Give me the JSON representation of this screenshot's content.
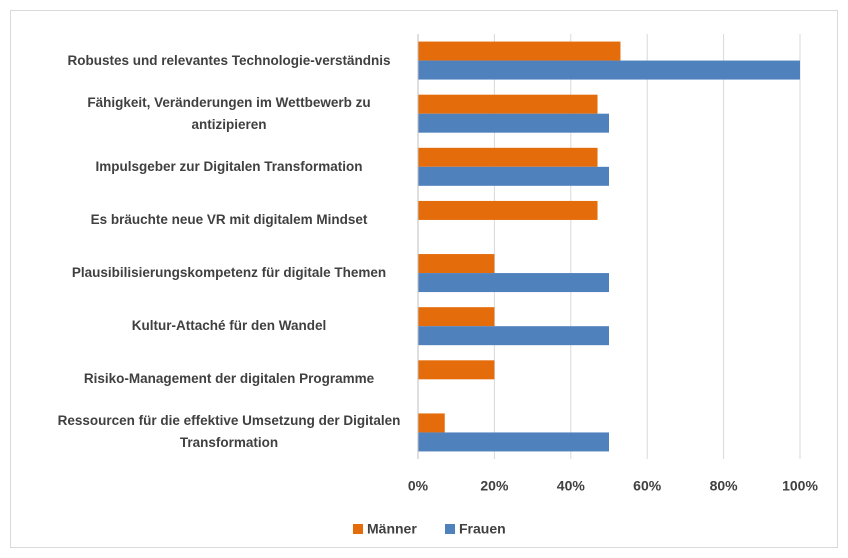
{
  "chart_data": {
    "type": "barh",
    "categories": [
      "Robustes und relevantes Technologie-verständnis",
      "Fähigkeit, Veränderungen im Wettbewerb zu antizipieren",
      "Impulsgeber zur Digitalen Transformation",
      "Es bräuchte neue VR mit digitalem Mindset",
      "Plausibilisierungskompetenz für digitale Themen",
      "Kultur-Attaché für den Wandel",
      "Risiko-Management der digitalen Programme",
      "Ressourcen für die effektive Umsetzung der Digitalen Transformation"
    ],
    "series": [
      {
        "name": "Männer",
        "color": "#e46c0a",
        "values": [
          53,
          47,
          47,
          47,
          20,
          20,
          20,
          7
        ]
      },
      {
        "name": "Frauen",
        "color": "#4f81bd",
        "values": [
          100,
          50,
          50,
          0,
          50,
          50,
          0,
          50
        ]
      }
    ],
    "xlim": [
      0,
      100
    ],
    "xticks": [
      {
        "value": 0,
        "label": "0%"
      },
      {
        "value": 20,
        "label": "20%"
      },
      {
        "value": 40,
        "label": "40%"
      },
      {
        "value": 60,
        "label": "60%"
      },
      {
        "value": 80,
        "label": "80%"
      },
      {
        "value": 100,
        "label": "100%"
      }
    ],
    "grid": true,
    "legend": "bottom"
  }
}
